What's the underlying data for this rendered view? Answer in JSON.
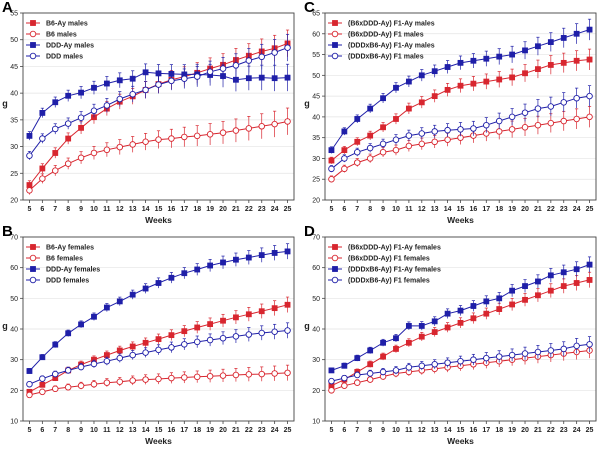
{
  "figure": {
    "colors": {
      "red": "#d8262f",
      "blue": "#1f1fa8"
    }
  },
  "chart_data": [
    {
      "panel": "A",
      "type": "line",
      "xlabel": "Weeks",
      "ylabel": "g",
      "x": [
        5,
        6,
        7,
        8,
        9,
        10,
        11,
        12,
        13,
        14,
        15,
        16,
        17,
        18,
        19,
        20,
        21,
        22,
        23,
        24,
        25
      ],
      "ylim": [
        20,
        55
      ],
      "yticks": [
        20,
        25,
        30,
        35,
        40,
        45,
        50,
        55
      ],
      "legend_position": "top-left",
      "series": [
        {
          "name": "B6-Ay males",
          "color": "red",
          "marker": "filled-square",
          "values": [
            22.8,
            25.9,
            28.8,
            31.5,
            33.5,
            35.5,
            37.1,
            38.4,
            39.4,
            40.6,
            41.7,
            42.5,
            43.1,
            43.8,
            44.6,
            45.3,
            46.2,
            47.0,
            47.8,
            48.4,
            49.3
          ]
        },
        {
          "name": "B6 males",
          "color": "red",
          "marker": "open-circle",
          "values": [
            21.8,
            24.0,
            25.5,
            26.8,
            27.9,
            28.8,
            29.4,
            29.9,
            30.4,
            30.9,
            31.3,
            31.5,
            31.8,
            32.0,
            32.3,
            32.6,
            33.0,
            33.4,
            33.8,
            34.2,
            34.7
          ]
        },
        {
          "name": "DDD-Ay males",
          "color": "blue",
          "marker": "filled-square",
          "values": [
            32.0,
            36.3,
            38.3,
            39.5,
            40.1,
            41.0,
            41.8,
            42.4,
            42.7,
            43.9,
            43.7,
            43.6,
            43.5,
            43.5,
            43.4,
            43.2,
            42.5,
            42.8,
            42.9,
            42.8,
            42.9
          ]
        },
        {
          "name": "DDD males",
          "color": "blue",
          "marker": "open-circle",
          "values": [
            28.3,
            31.5,
            33.3,
            34.3,
            35.4,
            36.7,
            37.7,
            38.9,
            39.8,
            40.6,
            41.6,
            42.3,
            42.7,
            43.1,
            44.0,
            44.6,
            45.2,
            46.1,
            46.8,
            47.6,
            48.5
          ]
        }
      ]
    },
    {
      "panel": "B",
      "type": "line",
      "xlabel": "Weeks",
      "ylabel": "g",
      "x": [
        5,
        6,
        7,
        8,
        9,
        10,
        11,
        12,
        13,
        14,
        15,
        16,
        17,
        18,
        19,
        20,
        21,
        22,
        23,
        24,
        25
      ],
      "ylim": [
        10,
        70
      ],
      "yticks": [
        10,
        20,
        30,
        40,
        50,
        60,
        70
      ],
      "legend_position": "top-left",
      "series": [
        {
          "name": "B6-Ay females",
          "color": "red",
          "marker": "filled-square",
          "values": [
            19.5,
            21.8,
            24.0,
            26.5,
            28.4,
            30.0,
            31.5,
            33.0,
            34.3,
            35.5,
            36.7,
            38.0,
            39.3,
            40.5,
            41.6,
            42.7,
            43.8,
            44.8,
            45.8,
            46.8,
            47.9
          ]
        },
        {
          "name": "B6 females",
          "color": "red",
          "marker": "open-circle",
          "values": [
            18.5,
            19.5,
            20.5,
            21.0,
            21.5,
            22.0,
            22.5,
            22.8,
            23.2,
            23.5,
            23.7,
            24.0,
            24.2,
            24.4,
            24.6,
            24.8,
            25.0,
            25.2,
            25.3,
            25.5,
            25.7
          ]
        },
        {
          "name": "DDD-Ay females",
          "color": "blue",
          "marker": "filled-square",
          "values": [
            26.3,
            30.8,
            34.9,
            38.6,
            41.5,
            44.0,
            47.0,
            49.0,
            51.2,
            53.2,
            55.0,
            56.7,
            58.2,
            59.4,
            60.7,
            61.7,
            62.6,
            63.3,
            64.1,
            64.8,
            65.3
          ]
        },
        {
          "name": "DDD females",
          "color": "blue",
          "marker": "open-circle",
          "values": [
            22.0,
            23.8,
            25.3,
            26.5,
            27.6,
            28.6,
            29.5,
            30.5,
            31.5,
            32.3,
            33.2,
            34.0,
            35.0,
            35.8,
            36.4,
            37.0,
            37.6,
            38.2,
            38.7,
            39.1,
            39.5
          ]
        }
      ]
    },
    {
      "panel": "C",
      "type": "line",
      "xlabel": "Weeks",
      "ylabel": "g",
      "x": [
        5,
        6,
        7,
        8,
        9,
        10,
        11,
        12,
        13,
        14,
        15,
        16,
        17,
        18,
        19,
        20,
        21,
        22,
        23,
        24,
        25
      ],
      "ylim": [
        20,
        65
      ],
      "yticks": [
        20,
        25,
        30,
        35,
        40,
        45,
        50,
        55,
        60,
        65
      ],
      "legend_position": "top-left",
      "series": [
        {
          "name": "(B6xDDD-Ay) F1-Ay males",
          "color": "red",
          "marker": "filled-square",
          "values": [
            29.5,
            32.0,
            34.0,
            35.5,
            37.5,
            39.5,
            42.0,
            43.5,
            45.0,
            46.5,
            47.5,
            48.0,
            48.5,
            49.0,
            49.5,
            50.5,
            51.5,
            52.5,
            53.0,
            53.5,
            53.8
          ]
        },
        {
          "name": "(B6xDDD-Ay) F1 males",
          "color": "red",
          "marker": "open-circle",
          "values": [
            25.0,
            27.5,
            29.0,
            30.0,
            31.5,
            32.0,
            33.0,
            33.5,
            34.0,
            34.5,
            35.0,
            35.5,
            36.0,
            36.5,
            37.0,
            37.5,
            38.0,
            38.5,
            39.0,
            39.5,
            40.0
          ]
        },
        {
          "name": "(DDDxB6-Ay) F1-Ay males",
          "color": "blue",
          "marker": "filled-square",
          "values": [
            32.0,
            36.5,
            39.5,
            42.0,
            44.5,
            47.0,
            48.5,
            50.0,
            51.0,
            52.0,
            53.0,
            53.5,
            54.0,
            54.5,
            55.0,
            56.0,
            57.0,
            58.0,
            59.0,
            60.0,
            61.0
          ]
        },
        {
          "name": "(DDDxB6-Ay) F1 males",
          "color": "blue",
          "marker": "open-circle",
          "values": [
            27.5,
            30.0,
            31.5,
            32.5,
            33.5,
            34.5,
            35.5,
            36.0,
            36.5,
            36.8,
            37.0,
            37.2,
            38.0,
            39.0,
            40.0,
            41.0,
            42.0,
            42.5,
            43.5,
            44.5,
            45.0
          ]
        }
      ]
    },
    {
      "panel": "D",
      "type": "line",
      "xlabel": "Weeks",
      "ylabel": "g",
      "x": [
        5,
        6,
        7,
        8,
        9,
        10,
        11,
        12,
        13,
        14,
        15,
        16,
        17,
        18,
        19,
        20,
        21,
        22,
        23,
        24,
        25
      ],
      "ylim": [
        10,
        70
      ],
      "yticks": [
        10,
        20,
        30,
        40,
        50,
        60,
        70
      ],
      "legend_position": "top-left",
      "series": [
        {
          "name": "(B6xDDD-Ay) F1-Ay females",
          "color": "red",
          "marker": "filled-square",
          "values": [
            21.5,
            23.5,
            26.0,
            28.5,
            31.0,
            33.5,
            35.5,
            37.5,
            39.0,
            40.5,
            42.0,
            43.5,
            45.0,
            46.5,
            48.0,
            49.5,
            51.0,
            52.5,
            54.0,
            55.0,
            56.0
          ]
        },
        {
          "name": "(B6xDDD-Ay) F1 females",
          "color": "red",
          "marker": "open-circle",
          "values": [
            20.0,
            21.5,
            22.5,
            23.5,
            24.5,
            25.5,
            26.0,
            26.5,
            27.0,
            27.5,
            28.0,
            28.5,
            29.0,
            29.5,
            30.0,
            30.5,
            31.0,
            31.5,
            32.0,
            32.5,
            33.0
          ]
        },
        {
          "name": "(DDDxB6-Ay) F1-Ay females",
          "color": "blue",
          "marker": "filled-square",
          "values": [
            26.5,
            28.0,
            30.5,
            33.0,
            35.5,
            37.0,
            41.0,
            41.0,
            42.5,
            45.0,
            46.0,
            47.5,
            49.0,
            50.0,
            52.5,
            54.0,
            55.5,
            57.5,
            58.5,
            59.5,
            61.0
          ]
        },
        {
          "name": "(DDDxB6-Ay) F1 females",
          "color": "blue",
          "marker": "open-circle",
          "values": [
            23.0,
            24.0,
            25.0,
            25.5,
            26.0,
            26.5,
            27.5,
            28.0,
            28.5,
            29.0,
            29.5,
            30.0,
            30.5,
            31.0,
            31.5,
            32.0,
            32.5,
            33.0,
            33.5,
            34.5,
            35.0
          ]
        }
      ]
    }
  ]
}
